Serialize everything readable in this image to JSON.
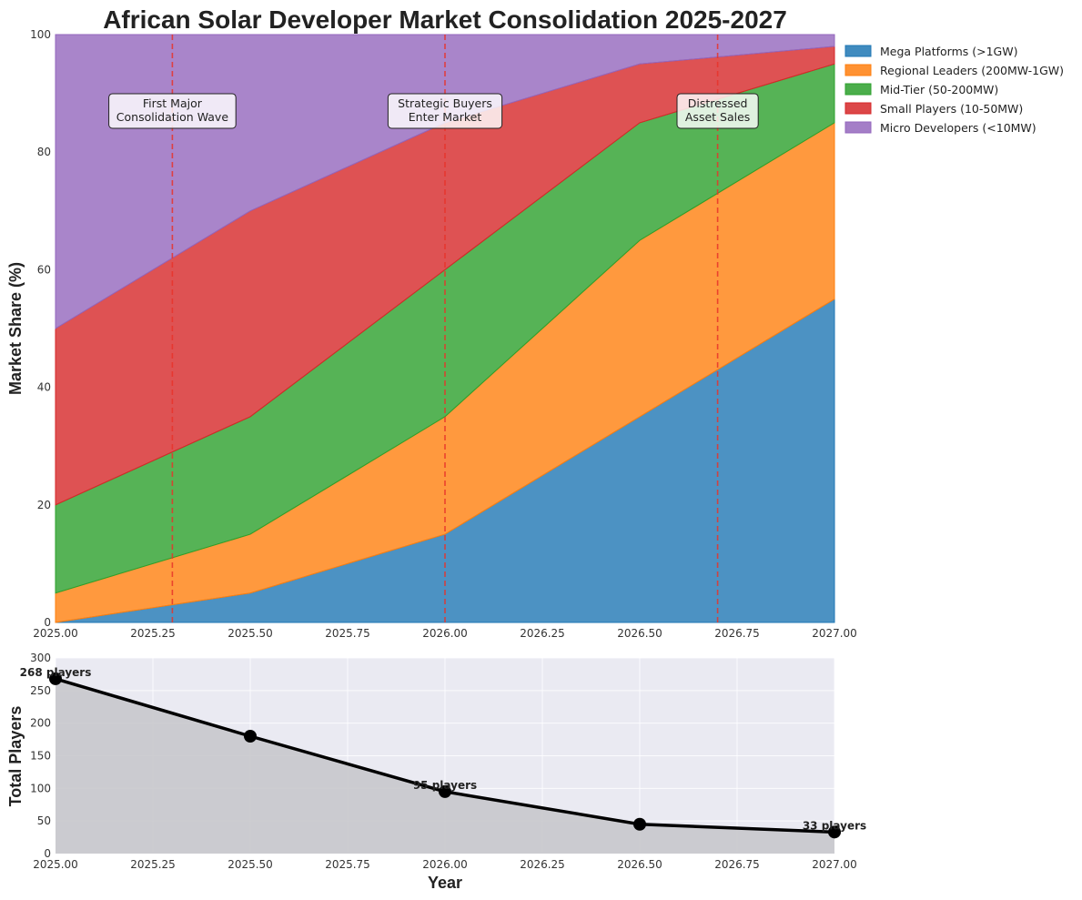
{
  "chart_data": [
    {
      "type": "area",
      "stacked": true,
      "title": "African Solar Developer Market Consolidation 2025-2027",
      "xlabel": "",
      "ylabel": "Market Share (%)",
      "x": [
        2025.0,
        2025.5,
        2026.0,
        2026.5,
        2027.0
      ],
      "xlim": [
        2025.0,
        2027.0
      ],
      "ylim": [
        0,
        100
      ],
      "x_ticks": [
        "2025.00",
        "2025.25",
        "2025.50",
        "2025.75",
        "2026.00",
        "2026.25",
        "2026.50",
        "2026.75",
        "2027.00"
      ],
      "x_tick_values": [
        2025.0,
        2025.25,
        2025.5,
        2025.75,
        2026.0,
        2026.25,
        2026.5,
        2026.75,
        2027.0
      ],
      "y_ticks": [
        "0",
        "20",
        "40",
        "60",
        "80",
        "100"
      ],
      "y_tick_values": [
        0,
        20,
        40,
        60,
        80,
        100
      ],
      "series": [
        {
          "name": "Mega Platforms (>1GW)",
          "color": "#1f77b4",
          "values": [
            0,
            5,
            15,
            35,
            55
          ]
        },
        {
          "name": "Regional Leaders (200MW-1GW)",
          "color": "#ff7f0e",
          "values": [
            5,
            10,
            20,
            30,
            30
          ]
        },
        {
          "name": "Mid-Tier (50-200MW)",
          "color": "#2ca02c",
          "values": [
            15,
            20,
            25,
            20,
            10
          ]
        },
        {
          "name": "Small Players (10-50MW)",
          "color": "#d62728",
          "values": [
            30,
            35,
            25,
            10,
            3
          ]
        },
        {
          "name": "Micro Developers (<10MW)",
          "color": "#9467bd",
          "values": [
            50,
            30,
            15,
            5,
            2
          ]
        }
      ],
      "legend_position": "outside-top-right",
      "annotations": [
        {
          "x": 2025.3,
          "y": 87,
          "lines": [
            "First Major",
            "Consolidation Wave"
          ]
        },
        {
          "x": 2026.0,
          "y": 87,
          "lines": [
            "Strategic Buyers",
            "Enter Market"
          ]
        },
        {
          "x": 2026.7,
          "y": 87,
          "lines": [
            "Distressed",
            "Asset Sales"
          ]
        }
      ],
      "event_lines": [
        2025.3,
        2026.0,
        2026.7
      ],
      "event_line_color": "#e8332a"
    },
    {
      "type": "line",
      "title": "",
      "xlabel": "Year",
      "ylabel": "Total Players",
      "x": [
        2025.0,
        2025.5,
        2026.0,
        2026.5,
        2027.0
      ],
      "values": [
        268,
        180,
        95,
        45,
        33
      ],
      "xlim": [
        2025.0,
        2027.0
      ],
      "ylim": [
        0,
        300
      ],
      "x_ticks": [
        "2025.00",
        "2025.25",
        "2025.50",
        "2025.75",
        "2026.00",
        "2026.25",
        "2026.50",
        "2026.75",
        "2027.00"
      ],
      "x_tick_values": [
        2025.0,
        2025.25,
        2025.5,
        2025.75,
        2026.0,
        2026.25,
        2026.5,
        2026.75,
        2027.0
      ],
      "y_ticks": [
        "0",
        "50",
        "100",
        "150",
        "200",
        "250",
        "300"
      ],
      "y_tick_values": [
        0,
        50,
        100,
        150,
        200,
        250,
        300
      ],
      "line_color": "#000000",
      "fill_color": "#c8c8cc",
      "background_color": "#eaeaf2",
      "grid": true,
      "data_labels": [
        {
          "x": 2025.0,
          "value": 268,
          "text": "268 players"
        },
        {
          "x": 2026.0,
          "value": 95,
          "text": "95 players"
        },
        {
          "x": 2027.0,
          "value": 33,
          "text": "33 players"
        }
      ]
    }
  ]
}
